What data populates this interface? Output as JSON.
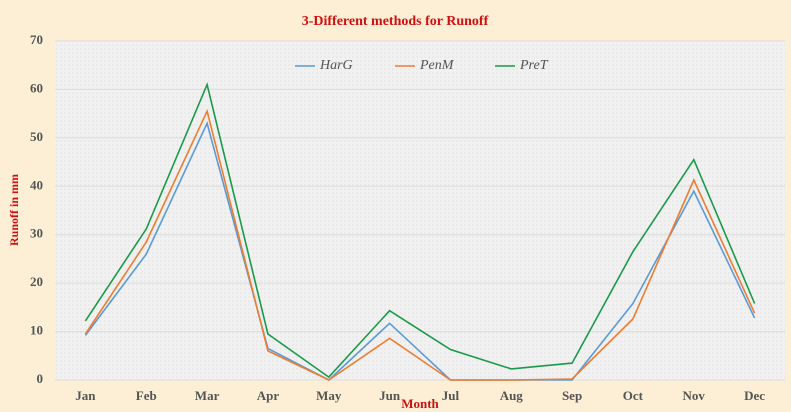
{
  "chart_data": {
    "type": "line",
    "title": "3-Different methods for Runoff",
    "x_label": "Month",
    "y_label": "Runoff in mm",
    "categories": [
      "Jan",
      "Feb",
      "Mar",
      "Apr",
      "May",
      "Jun",
      "Jul",
      "Aug",
      "Sep",
      "Oct",
      "Nov",
      "Dec"
    ],
    "series": [
      {
        "name": "HarG",
        "color": "#5b9bd5",
        "values": [
          9.2,
          26,
          53,
          6.5,
          0,
          11.7,
          0,
          0,
          0,
          15.8,
          39,
          12.8
        ]
      },
      {
        "name": "PenM",
        "color": "#ed7d31",
        "values": [
          9.5,
          28.5,
          55.5,
          6,
          0,
          8.6,
          0,
          0,
          0.2,
          12.6,
          41.3,
          13.8
        ]
      },
      {
        "name": "PreT",
        "color": "#1a9a4a",
        "values": [
          12.2,
          31.2,
          61,
          9.5,
          0.6,
          14.3,
          6.3,
          2.3,
          3.5,
          26.5,
          45.5,
          15.8
        ]
      }
    ],
    "ylim": [
      0,
      70
    ],
    "yticks": [
      0,
      10,
      20,
      30,
      40,
      50,
      60,
      70
    ],
    "grid": true,
    "legend": "top"
  }
}
